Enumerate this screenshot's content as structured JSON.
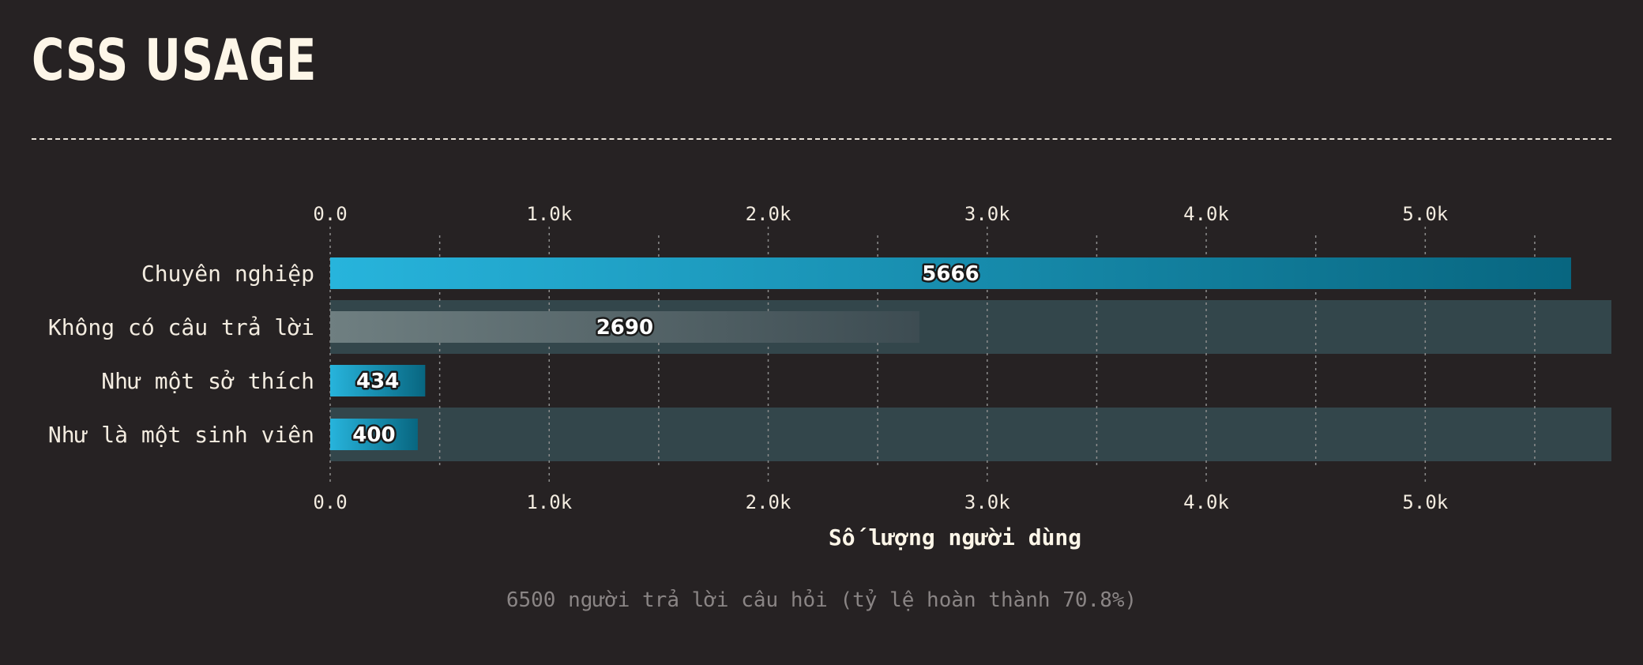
{
  "page": {
    "title": "CSS USAGE",
    "footnote": "6500 người trả lời câu hỏi (tỷ lệ hoàn thành 70.8%)"
  },
  "colors": {
    "background": "#262223",
    "highlight_bar_start": "#27b4dc",
    "highlight_bar_end": "#086680",
    "muted_bar_start": "#6f7f81",
    "muted_bar_end": "#3d4c52",
    "row_band": "#33464b",
    "grid": "#8d8d8d"
  },
  "chart_data": {
    "type": "bar",
    "orientation": "horizontal",
    "categories": [
      "Chuyên nghiệp",
      "Không có câu trả lời",
      "Như một sở thích",
      "Như là một sinh viên"
    ],
    "values": [
      5666,
      2690,
      434,
      400
    ],
    "value_labels": [
      "5666",
      "2690",
      "434",
      "400"
    ],
    "highlighted": [
      true,
      false,
      true,
      true
    ],
    "xlabel": "Số lượng người dùng",
    "xlim": [
      0,
      5850
    ],
    "ticks": [
      0,
      1000,
      2000,
      3000,
      4000,
      5000
    ],
    "tick_labels": [
      "0.0",
      "1.0k",
      "2.0k",
      "3.0k",
      "4.0k",
      "5.0k"
    ],
    "minor_gridlines": [
      500,
      1500,
      2500,
      3500,
      4500,
      5500
    ],
    "grid": true,
    "tick_labels_position": "top-and-bottom"
  }
}
